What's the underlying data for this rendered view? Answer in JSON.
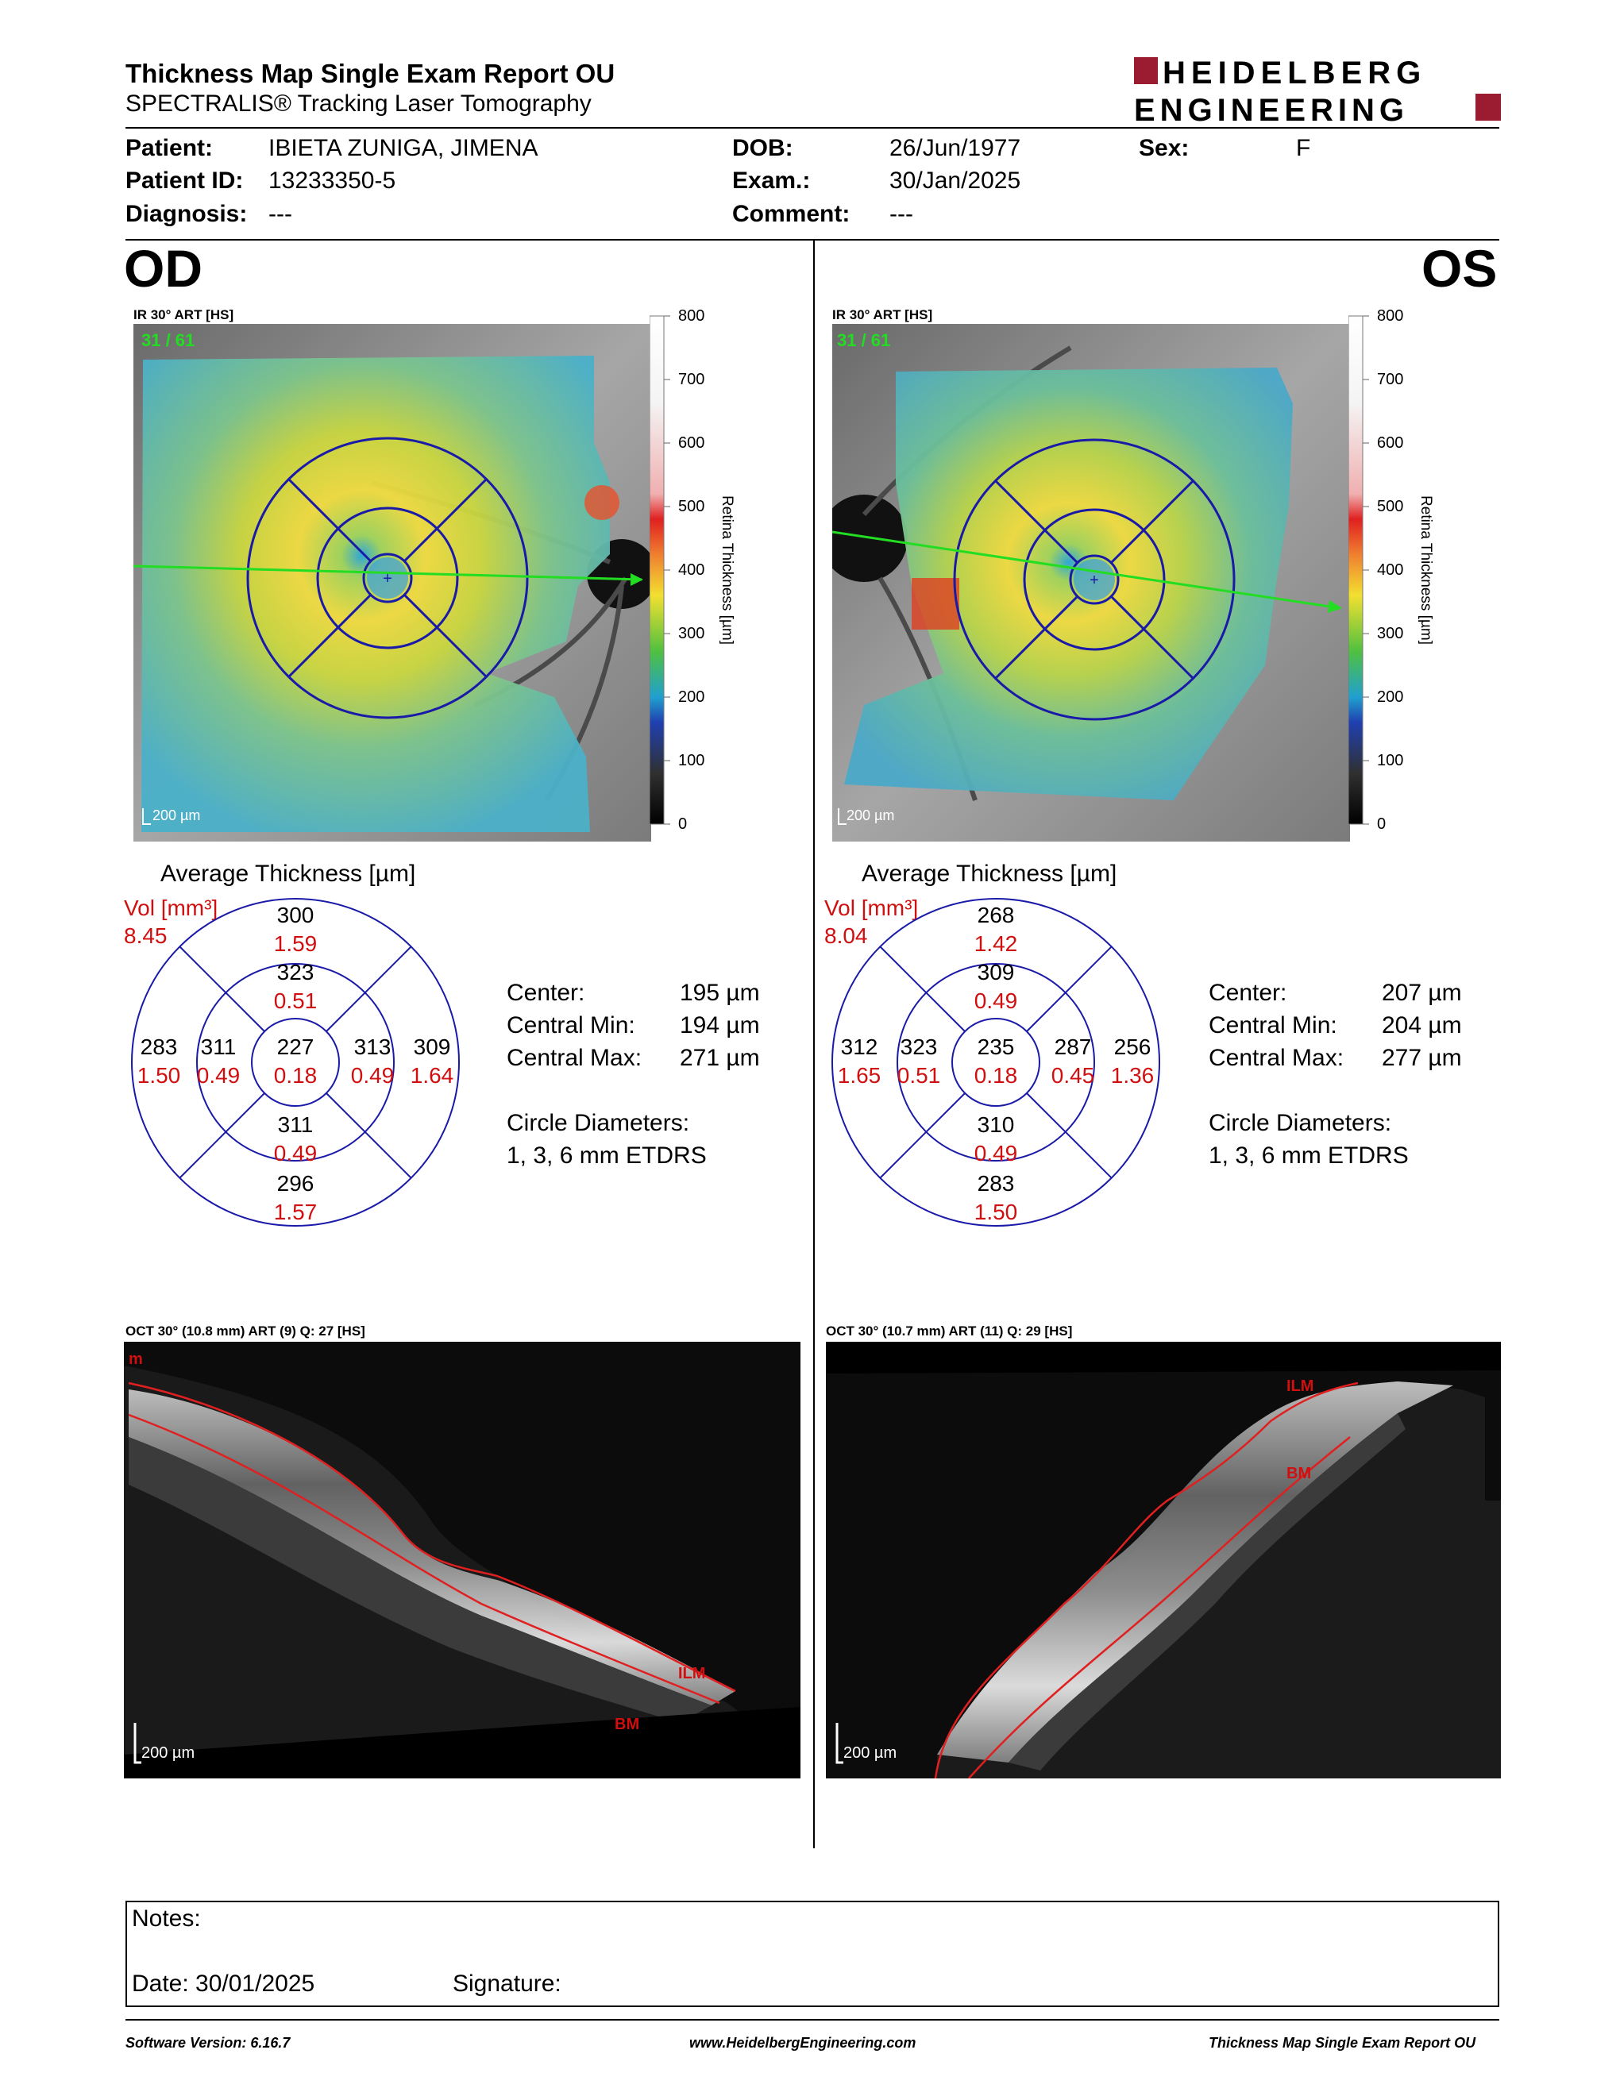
{
  "report": {
    "title": "Thickness Map Single Exam Report OU",
    "subtitle": "SPECTRALIS® Tracking Laser Tomography",
    "logo_line1": "HEIDELBERG",
    "logo_line2": "ENGINEERING",
    "brand_color": "#9b1b30"
  },
  "patient": {
    "patient_label": "Patient:",
    "patient_value": "IBIETA ZUNIGA, JIMENA",
    "id_label": "Patient ID:",
    "id_value": "13233350-5",
    "diag_label": "Diagnosis:",
    "diag_value": "---",
    "dob_label": "DOB:",
    "dob_value": "26/Jun/1977",
    "exam_label": "Exam.:",
    "exam_value": "30/Jan/2025",
    "comment_label": "Comment:",
    "comment_value": "---",
    "sex_label": "Sex:",
    "sex_value": "F"
  },
  "scale": {
    "ticks": [
      "800",
      "700",
      "600",
      "500",
      "400",
      "300",
      "200",
      "100",
      "0"
    ],
    "label": "Retina Thickness [µm]"
  },
  "avg_title": "Average Thickness [µm]",
  "vol_label": "Vol [mm³]",
  "labels": {
    "center": "Center:",
    "central_min": "Central Min:",
    "central_max": "Central Max:",
    "circle_diam": "Circle Diameters:",
    "etdrs": "1, 3, 6 mm ETDRS"
  },
  "od": {
    "eye": "OD",
    "ir_label": "IR 30° ART [HS]",
    "frames": "31 / 61",
    "scale_bar": "200 µm",
    "vol_total": "8.45",
    "etdrs": {
      "superior_outer": {
        "t": "300",
        "v": "1.59"
      },
      "superior_inner": {
        "t": "323",
        "v": "0.51"
      },
      "center": {
        "t": "227",
        "v": "0.18"
      },
      "temporal_outer": {
        "t": "283",
        "v": "1.50"
      },
      "temporal_inner": {
        "t": "311",
        "v": "0.49"
      },
      "nasal_inner": {
        "t": "313",
        "v": "0.49"
      },
      "nasal_outer": {
        "t": "309",
        "v": "1.64"
      },
      "inferior_inner": {
        "t": "311",
        "v": "0.49"
      },
      "inferior_outer": {
        "t": "296",
        "v": "1.57"
      }
    },
    "center_val": "195 µm",
    "central_min_val": "194 µm",
    "central_max_val": "271 µm",
    "oct_label": "OCT 30° (10.8 mm) ART (9) Q: 27 [HS]",
    "ilm": "ILM",
    "bm": "BM",
    "m": "m"
  },
  "os": {
    "eye": "OS",
    "ir_label": "IR 30° ART [HS]",
    "frames": "31 / 61",
    "scale_bar": "200 µm",
    "vol_total": "8.04",
    "etdrs": {
      "superior_outer": {
        "t": "268",
        "v": "1.42"
      },
      "superior_inner": {
        "t": "309",
        "v": "0.49"
      },
      "center": {
        "t": "235",
        "v": "0.18"
      },
      "temporal_outer": {
        "t": "312",
        "v": "1.65"
      },
      "temporal_inner": {
        "t": "323",
        "v": "0.51"
      },
      "nasal_inner": {
        "t": "287",
        "v": "0.45"
      },
      "nasal_outer": {
        "t": "256",
        "v": "1.36"
      },
      "inferior_inner": {
        "t": "310",
        "v": "0.49"
      },
      "inferior_outer": {
        "t": "283",
        "v": "1.50"
      }
    },
    "center_val": "207 µm",
    "central_min_val": "204 µm",
    "central_max_val": "277 µm",
    "oct_label": "OCT 30° (10.7 mm) ART (11) Q: 29 [HS]",
    "ilm": "ILM",
    "bm": "BM"
  },
  "notes": {
    "notes_label": "Notes:",
    "date_label": "Date: 30/01/2025",
    "signature_label": "Signature:"
  },
  "footer": {
    "software": "Software Version: 6.16.7",
    "website": "www.HeidelbergEngineering.com",
    "report_name": "Thickness Map Single Exam Report OU"
  }
}
